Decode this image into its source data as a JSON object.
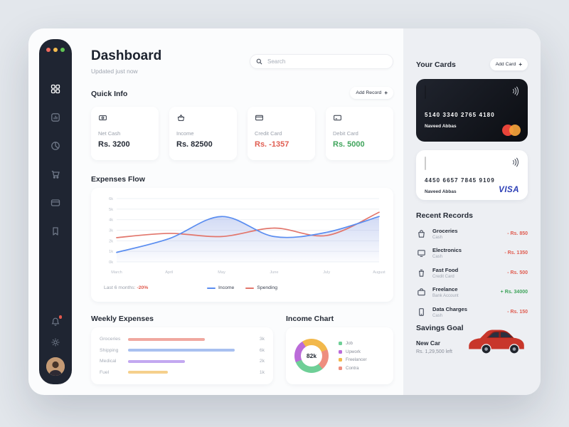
{
  "window": {
    "traffic_lights": [
      "#ee6a5f",
      "#f5bd4f",
      "#61c454"
    ]
  },
  "sidebar": {
    "items": [
      {
        "icon": "dashboard-grid-icon",
        "active": true
      },
      {
        "icon": "stats-icon",
        "active": false
      },
      {
        "icon": "pie-chart-icon",
        "active": false
      },
      {
        "icon": "cart-icon",
        "active": false
      },
      {
        "icon": "wallet-icon",
        "active": false
      },
      {
        "icon": "bookmark-icon",
        "active": false
      }
    ],
    "bottom": [
      {
        "icon": "bell-icon",
        "has_badge": true
      },
      {
        "icon": "gear-icon",
        "has_badge": false
      },
      {
        "icon": "avatar",
        "has_badge": false
      }
    ]
  },
  "header": {
    "title": "Dashboard",
    "subtitle": "Updated just now",
    "search_placeholder": "Search"
  },
  "quick_info": {
    "title": "Quick Info",
    "add_button": "Add Record",
    "plus": "+",
    "cards": [
      {
        "icon": "cash-icon",
        "label": "Net Cash",
        "value": "Rs. 3200",
        "value_color": "#242a35"
      },
      {
        "icon": "income-icon",
        "label": "Income",
        "value": "Rs. 82500",
        "value_color": "#242a35"
      },
      {
        "icon": "credit-card-icon",
        "label": "Credit Card",
        "value": "Rs. -1357",
        "value_color": "#e05d51"
      },
      {
        "icon": "debit-card-icon",
        "label": "Debit Card",
        "value": "Rs. 5000",
        "value_color": "#3fa45b"
      }
    ]
  },
  "expenses_flow": {
    "title": "Expenses Flow",
    "footnote_label": "Last 6 months:",
    "footnote_value": "-20%",
    "chart_data": {
      "type": "line",
      "x": [
        "March",
        "April",
        "May",
        "June",
        "July",
        "August"
      ],
      "series": [
        {
          "name": "Income",
          "color": "#5a8df0",
          "values": [
            0.9,
            2.2,
            4.3,
            2.4,
            2.8,
            4.3
          ]
        },
        {
          "name": "Spending",
          "color": "#e2766c",
          "values": [
            2.3,
            2.7,
            2.4,
            3.2,
            2.5,
            4.7
          ]
        }
      ],
      "ylim": [
        0,
        6
      ],
      "yticks": [
        "6k",
        "5k",
        "4k",
        "3k",
        "2k",
        "1k",
        "0k"
      ],
      "grid": true,
      "legend_position": "bottom"
    }
  },
  "weekly_expenses": {
    "title": "Weekly Expenses",
    "chart_data": {
      "type": "bar",
      "orientation": "horizontal",
      "categories": [
        "Groceries",
        "Shipping",
        "Medical",
        "Fuel"
      ],
      "values": [
        "3k",
        "6k",
        "2k",
        "1k"
      ],
      "percents": [
        62,
        86,
        46,
        32
      ],
      "colors": [
        "#f0a8a0",
        "#a8c0f0",
        "#c3a8f0",
        "#f5d08c"
      ]
    }
  },
  "income_chart": {
    "title": "Income Chart",
    "total": "82k",
    "chart_data": {
      "type": "pie",
      "segments": [
        {
          "label": "Job",
          "value": 30,
          "color": "#6fcf97"
        },
        {
          "label": "Upwork",
          "value": 22,
          "color": "#bb6bd9"
        },
        {
          "label": "Freelancer",
          "value": 28,
          "color": "#f2b84b"
        },
        {
          "label": "Contra",
          "value": 20,
          "color": "#ee8e7f"
        }
      ]
    }
  },
  "your_cards": {
    "title": "Your Cards",
    "add_button": "Add Card",
    "plus": "+",
    "cards": [
      {
        "style": "black",
        "number": "5140 3340 2765 4180",
        "holder": "Naveed Abbas",
        "brand": "mastercard"
      },
      {
        "style": "white",
        "number": "4450 6657 7845 9109",
        "holder": "Naveed Abbas",
        "brand": "visa",
        "brand_label": "VISA"
      }
    ]
  },
  "recent_records": {
    "title": "Recent Records",
    "items": [
      {
        "icon": "groceries-icon",
        "title": "Groceries",
        "subtitle": "Cash",
        "amount": "- Rs. 850",
        "amount_color": "#e05d51"
      },
      {
        "icon": "electronics-icon",
        "title": "Electronics",
        "subtitle": "Cash",
        "amount": "- Rs. 1350",
        "amount_color": "#e05d51"
      },
      {
        "icon": "fastfood-icon",
        "title": "Fast Food",
        "subtitle": "Credit Card",
        "amount": "- Rs. 500",
        "amount_color": "#e05d51"
      },
      {
        "icon": "freelance-icon",
        "title": "Freelance",
        "subtitle": "Bank Account",
        "amount": "+ Rs. 34000",
        "amount_color": "#3fa45b"
      },
      {
        "icon": "data-charges-icon",
        "title": "Data Charges",
        "subtitle": "Cash",
        "amount": "- Rs. 150",
        "amount_color": "#e05d51"
      }
    ]
  },
  "savings_goal": {
    "title": "Savings Goal",
    "item": "New Car",
    "remaining": "Rs. 1,29,500 left"
  }
}
